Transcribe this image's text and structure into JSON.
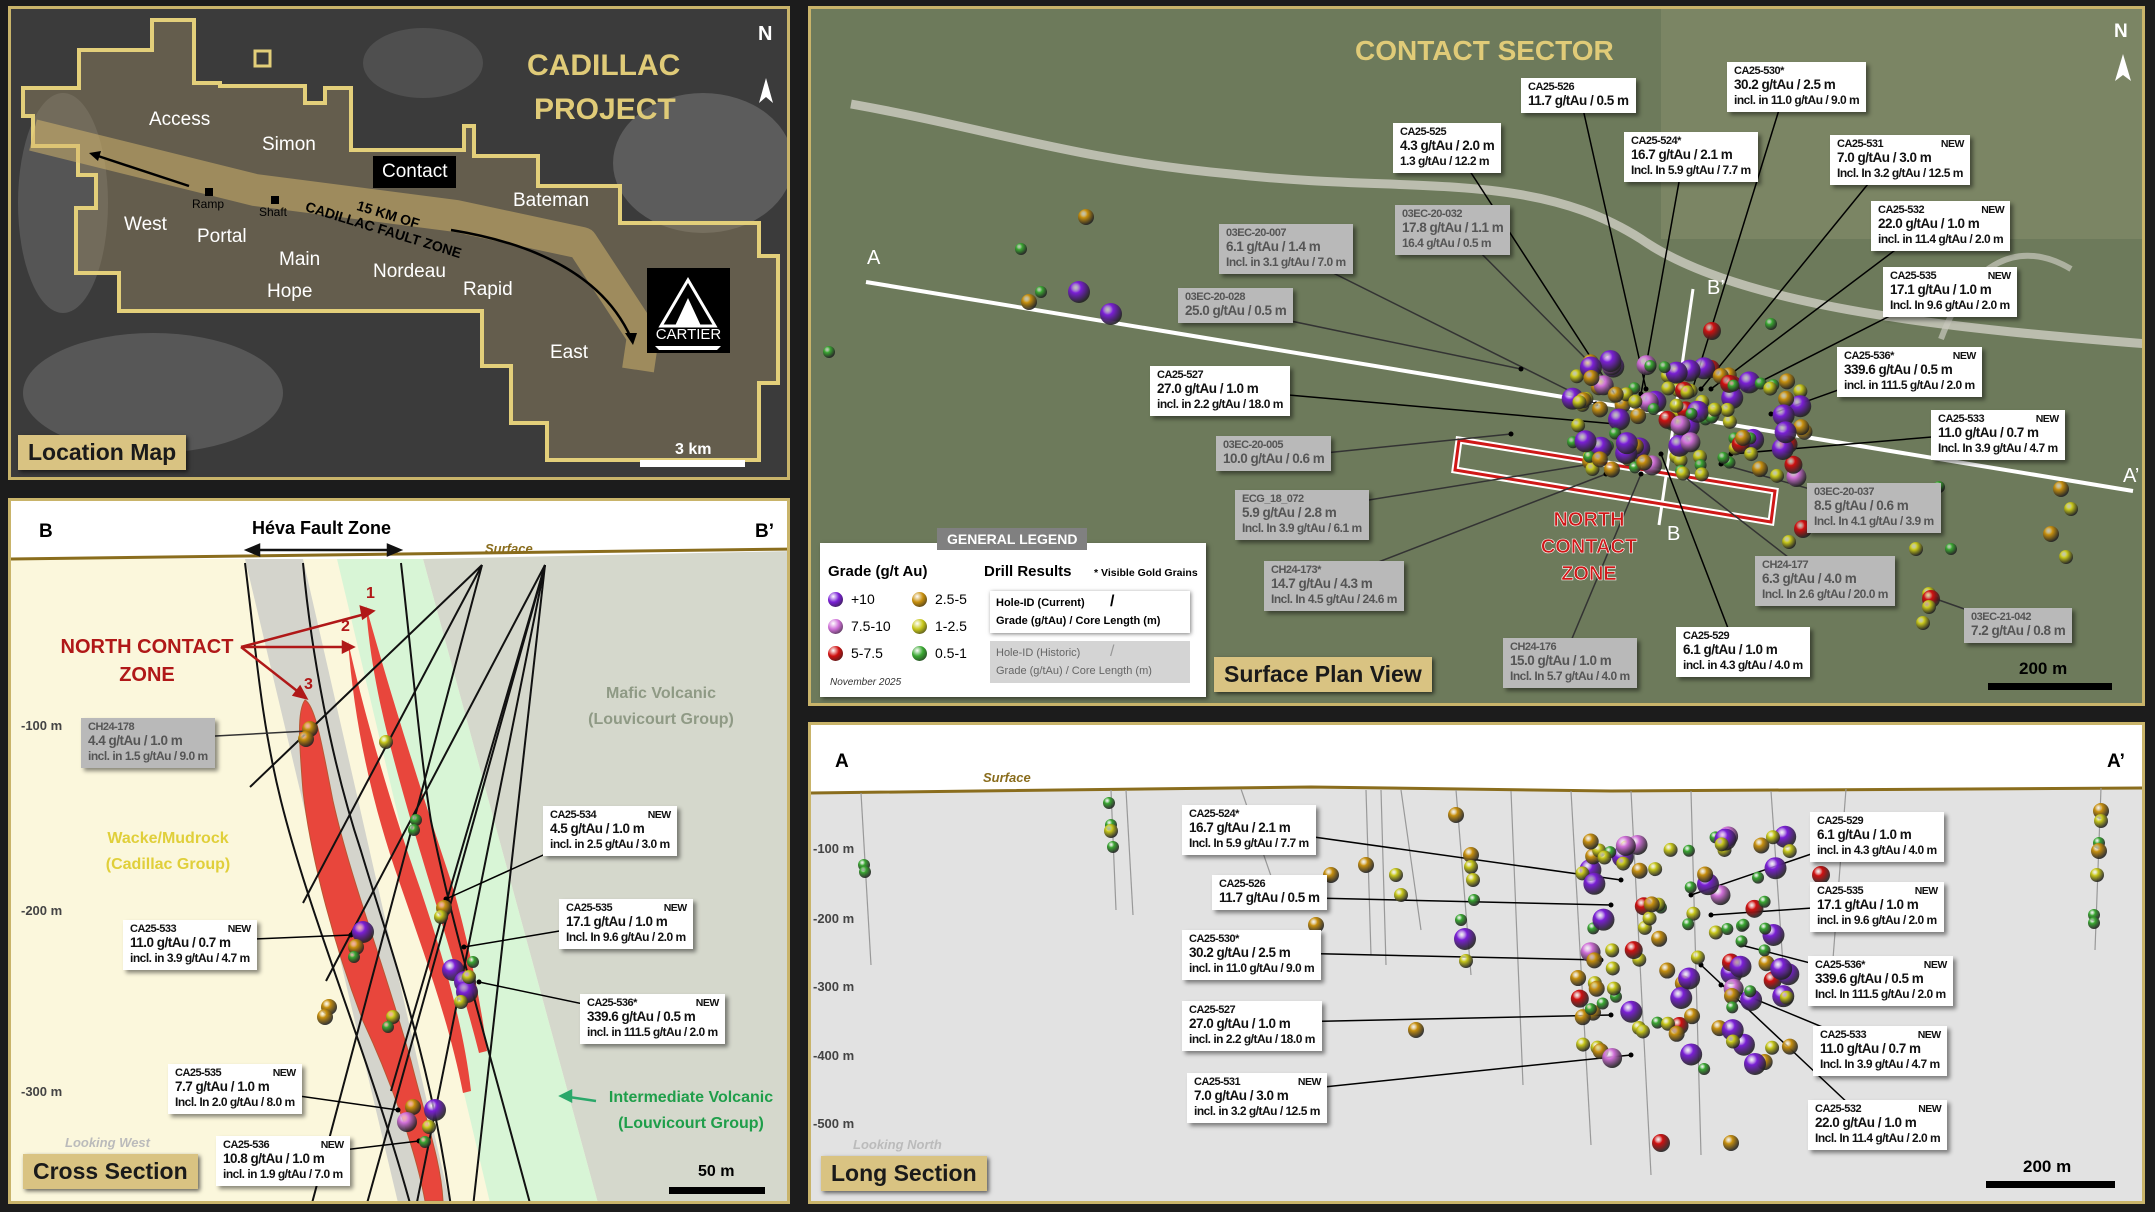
{
  "colors": {
    "accent_gold": "#c9b46a",
    "grade_plus10": "#7a1fd6",
    "grade_7_5_10": "#d070d8",
    "grade_5_7_5": "#d01010",
    "grade_2_5_5": "#c8900e",
    "grade_1_2_5": "#c8c81a",
    "grade_0_5_1": "#3aa832",
    "zone_red": "#e8463c"
  },
  "location_map": {
    "title_line1": "CADILLAC",
    "title_line2": "PROJECT",
    "panel_label": "Location Map",
    "north": "N",
    "scale": "3 km",
    "logo_text": "CARTIER",
    "highlight_deposit": "Contact",
    "deposits": [
      "Access",
      "Simon",
      "Bateman",
      "West",
      "Portal",
      "Main",
      "Hope",
      "Nordeau",
      "Rapid",
      "East"
    ],
    "infrastructure": [
      "Ramp",
      "Shaft"
    ],
    "fault_zone_line1": "15 KM OF",
    "fault_zone_line2": "CADILLAC FAULT ZONE"
  },
  "plan_view": {
    "title": "CONTACT SECTOR",
    "panel_label": "Surface Plan View",
    "north": "N",
    "scale": "200 m",
    "section_a": "A",
    "section_a_prime": "A’",
    "section_b": "B",
    "section_b_prime": "B’",
    "zone_line1": "NORTH",
    "zone_line2": "CONTACT",
    "zone_line3": "ZONE",
    "callouts": [
      {
        "hole": "CA25-526",
        "line1": "11.7 g/tAu / 0.5 m",
        "line2": "",
        "badge": "",
        "kind": "current"
      },
      {
        "hole": "CA25-530*",
        "line1": "30.2 g/tAu / 2.5 m",
        "line2": "incl. in 11.0 g/tAu / 9.0 m",
        "badge": "",
        "kind": "current"
      },
      {
        "hole": "CA25-525",
        "line1": "4.3 g/tAu / 2.0 m",
        "line2": "1.3 g/tAu / 12.2 m",
        "badge": "",
        "kind": "current"
      },
      {
        "hole": "CA25-524*",
        "line1": "16.7 g/tAu / 2.1 m",
        "line2": "Incl. In 5.9 g/tAu / 7.7 m",
        "badge": "",
        "kind": "current"
      },
      {
        "hole": "CA25-531",
        "line1": "7.0 g/tAu / 3.0 m",
        "line2": "Incl. In 3.2 g/tAu / 12.5 m",
        "badge": "NEW",
        "kind": "current"
      },
      {
        "hole": "03EC-20-032",
        "line1": "17.8 g/tAu / 1.1 m",
        "line2": "16.4 g/tAu / 0.5 m",
        "badge": "",
        "kind": "historic"
      },
      {
        "hole": "03EC-20-007",
        "line1": "6.1 g/tAu / 1.4 m",
        "line2": "Incl. in 3.1 g/tAu / 7.0 m",
        "badge": "",
        "kind": "historic"
      },
      {
        "hole": "CA25-532",
        "line1": "22.0 g/tAu / 1.0 m",
        "line2": "incl. in 11.4 g/tAu / 2.0 m",
        "badge": "NEW",
        "kind": "current"
      },
      {
        "hole": "CA25-535",
        "line1": "17.1 g/tAu / 1.0 m",
        "line2": "Incl. In 9.6 g/tAu / 2.0 m",
        "badge": "NEW",
        "kind": "current"
      },
      {
        "hole": "03EC-20-028",
        "line1": "25.0 g/tAu / 0.5 m",
        "line2": "",
        "badge": "",
        "kind": "historic"
      },
      {
        "hole": "CA25-536*",
        "line1": "339.6 g/tAu / 0.5 m",
        "line2": "incl. in 111.5 g/tAu / 2.0 m",
        "badge": "NEW",
        "kind": "current"
      },
      {
        "hole": "CA25-527",
        "line1": "27.0 g/tAu / 1.0 m",
        "line2": "incl. in 2.2 g/tAu / 18.0 m",
        "badge": "",
        "kind": "current"
      },
      {
        "hole": "CA25-533",
        "line1": "11.0 g/tAu / 0.7 m",
        "line2": "Incl. In 3.9 g/tAu / 4.7 m",
        "badge": "NEW",
        "kind": "current"
      },
      {
        "hole": "03EC-20-005",
        "line1": "10.0 g/tAu / 0.6 m",
        "line2": "",
        "badge": "",
        "kind": "historic"
      },
      {
        "hole": "03EC-20-037",
        "line1": "8.5 g/tAu / 0.6 m",
        "line2": "Incl. In 4.1 g/tAu / 3.9 m",
        "badge": "",
        "kind": "historic"
      },
      {
        "hole": "ECG_18_072",
        "line1": "5.9 g/tAu / 2.8 m",
        "line2": "Incl. In 3.9 g/tAu / 6.1 m",
        "badge": "",
        "kind": "historic"
      },
      {
        "hole": "CH24-173*",
        "line1": "14.7 g/tAu / 4.3 m",
        "line2": "Incl. In 4.5 g/tAu / 24.6 m",
        "badge": "",
        "kind": "historic"
      },
      {
        "hole": "CH24-177",
        "line1": "6.3 g/tAu / 4.0 m",
        "line2": "Incl. In 2.6 g/tAu / 20.0 m",
        "badge": "",
        "kind": "historic"
      },
      {
        "hole": "03EC-21-042",
        "line1": "7.2 g/tAu / 0.8 m",
        "line2": "",
        "badge": "",
        "kind": "historic"
      },
      {
        "hole": "CH24-176",
        "line1": "15.0 g/tAu / 1.0 m",
        "line2": "Incl. In 5.7 g/tAu / 4.0 m",
        "badge": "",
        "kind": "historic"
      },
      {
        "hole": "CA25-529",
        "line1": "6.1 g/tAu / 1.0 m",
        "line2": "incl. in 4.3 g/tAu / 4.0 m",
        "badge": "",
        "kind": "current"
      }
    ]
  },
  "legend": {
    "tab_title": "GENERAL LEGEND",
    "grade_title": "Grade (g/t Au)",
    "grades": [
      {
        "label": "+10",
        "color": "#7a1fd6"
      },
      {
        "label": "7.5-10",
        "color": "#d070d8"
      },
      {
        "label": "5-7.5",
        "color": "#d01010"
      },
      {
        "label": "2.5-5",
        "color": "#c8900e"
      },
      {
        "label": "1-2.5",
        "color": "#c8c81a"
      },
      {
        "label": "0.5-1",
        "color": "#3aa832"
      }
    ],
    "drill_results_title": "Drill Results",
    "visible_gold_note": "* Visible Gold Grains",
    "current_line1": "Hole-ID (Current)",
    "current_line2": "Grade (g/tAu) / Core Length (m)",
    "historic_line1": "Hole-ID (Historic)",
    "historic_line2": "Grade (g/tAu) / Core Length (m)",
    "date": "November 2025"
  },
  "cross_section": {
    "label_left": "B",
    "label_right": "B’",
    "fault_zone": "Héva Fault Zone",
    "surface": "Surface",
    "zone_line1": "NORTH CONTACT",
    "zone_line2": "ZONE",
    "zone_numbers": [
      "1",
      "2",
      "3"
    ],
    "unit_wacke_line1": "Wacke/Mudrock",
    "unit_wacke_line2": "(Cadillac Group)",
    "unit_mafic_line1": "Mafic Volcanic",
    "unit_mafic_line2": "(Louvicourt Group)",
    "unit_inter_line1": "Intermediate Volcanic",
    "unit_inter_line2": "(Louvicourt Group)",
    "depths": [
      "-100 m",
      "-200 m",
      "-300 m"
    ],
    "view_direction": "Looking West",
    "panel_label": "Cross Section",
    "scale": "50 m",
    "callouts": [
      {
        "hole": "CH24-178",
        "line1": "4.4 g/tAu / 1.0 m",
        "line2": "incl. in 1.5 g/tAu / 9.0 m",
        "badge": "",
        "kind": "historic"
      },
      {
        "hole": "CA25-534",
        "line1": "4.5 g/tAu / 1.0 m",
        "line2": "incl. in 2.5 g/tAu / 3.0 m",
        "badge": "NEW",
        "kind": "current"
      },
      {
        "hole": "CA25-535",
        "line1": "17.1 g/tAu / 1.0 m",
        "line2": "Incl. In 9.6 g/tAu / 2.0 m",
        "badge": "NEW",
        "kind": "current"
      },
      {
        "hole": "CA25-533",
        "line1": "11.0 g/tAu / 0.7 m",
        "line2": "incl. in 3.9 g/tAu / 4.7 m",
        "badge": "NEW",
        "kind": "current"
      },
      {
        "hole": "CA25-536*",
        "line1": "339.6 g/tAu / 0.5 m",
        "line2": "incl. in 111.5 g/tAu / 2.0 m",
        "badge": "NEW",
        "kind": "current"
      },
      {
        "hole": "CA25-535",
        "line1": "7.7 g/tAu / 1.0 m",
        "line2": "Incl. In 2.0 g/tAu / 8.0 m",
        "badge": "NEW",
        "kind": "current"
      },
      {
        "hole": "CA25-536",
        "line1": "10.8 g/tAu / 1.0 m",
        "line2": "incl. in 1.9 g/tAu / 7.0 m",
        "badge": "NEW",
        "kind": "current"
      }
    ]
  },
  "long_section": {
    "label_left": "A",
    "label_right": "A’",
    "surface": "Surface",
    "depths": [
      "-100 m",
      "-200 m",
      "-300 m",
      "-400 m",
      "-500 m"
    ],
    "view_direction": "Looking North",
    "panel_label": "Long Section",
    "scale": "200 m",
    "callouts": [
      {
        "hole": "CA25-524*",
        "line1": "16.7 g/tAu / 2.1 m",
        "line2": "Incl. In 5.9 g/tAu / 7.7 m",
        "badge": "",
        "kind": "current"
      },
      {
        "hole": "CA25-526",
        "line1": "11.7 g/tAu / 0.5 m",
        "line2": "",
        "badge": "",
        "kind": "current"
      },
      {
        "hole": "CA25-530*",
        "line1": "30.2 g/tAu / 2.5 m",
        "line2": "incl. in 11.0 g/tAu / 9.0 m",
        "badge": "",
        "kind": "current"
      },
      {
        "hole": "CA25-527",
        "line1": "27.0 g/tAu / 1.0 m",
        "line2": "incl. in 2.2 g/tAu / 18.0 m",
        "badge": "",
        "kind": "current"
      },
      {
        "hole": "CA25-531",
        "line1": "7.0 g/tAu / 3.0 m",
        "line2": "incl. in 3.2 g/tAu / 12.5 m",
        "badge": "NEW",
        "kind": "current"
      },
      {
        "hole": "CA25-529",
        "line1": "6.1 g/tAu / 1.0 m",
        "line2": "incl. in 4.3 g/tAu / 4.0 m",
        "badge": "",
        "kind": "current"
      },
      {
        "hole": "CA25-535",
        "line1": "17.1 g/tAu / 1.0 m",
        "line2": "incl. in 9.6 g/tAu / 2.0 m",
        "badge": "NEW",
        "kind": "current"
      },
      {
        "hole": "CA25-536*",
        "line1": "339.6 g/tAu / 0.5 m",
        "line2": "Incl. In 111.5 g/tAu / 2.0 m",
        "badge": "NEW",
        "kind": "current"
      },
      {
        "hole": "CA25-533",
        "line1": "11.0 g/tAu / 0.7 m",
        "line2": "Incl. In 3.9 g/tAu / 4.7 m",
        "badge": "NEW",
        "kind": "current"
      },
      {
        "hole": "CA25-532",
        "line1": "22.0 g/tAu / 1.0 m",
        "line2": "Incl. In 11.4 g/tAu / 2.0 m",
        "badge": "NEW",
        "kind": "current"
      }
    ]
  }
}
